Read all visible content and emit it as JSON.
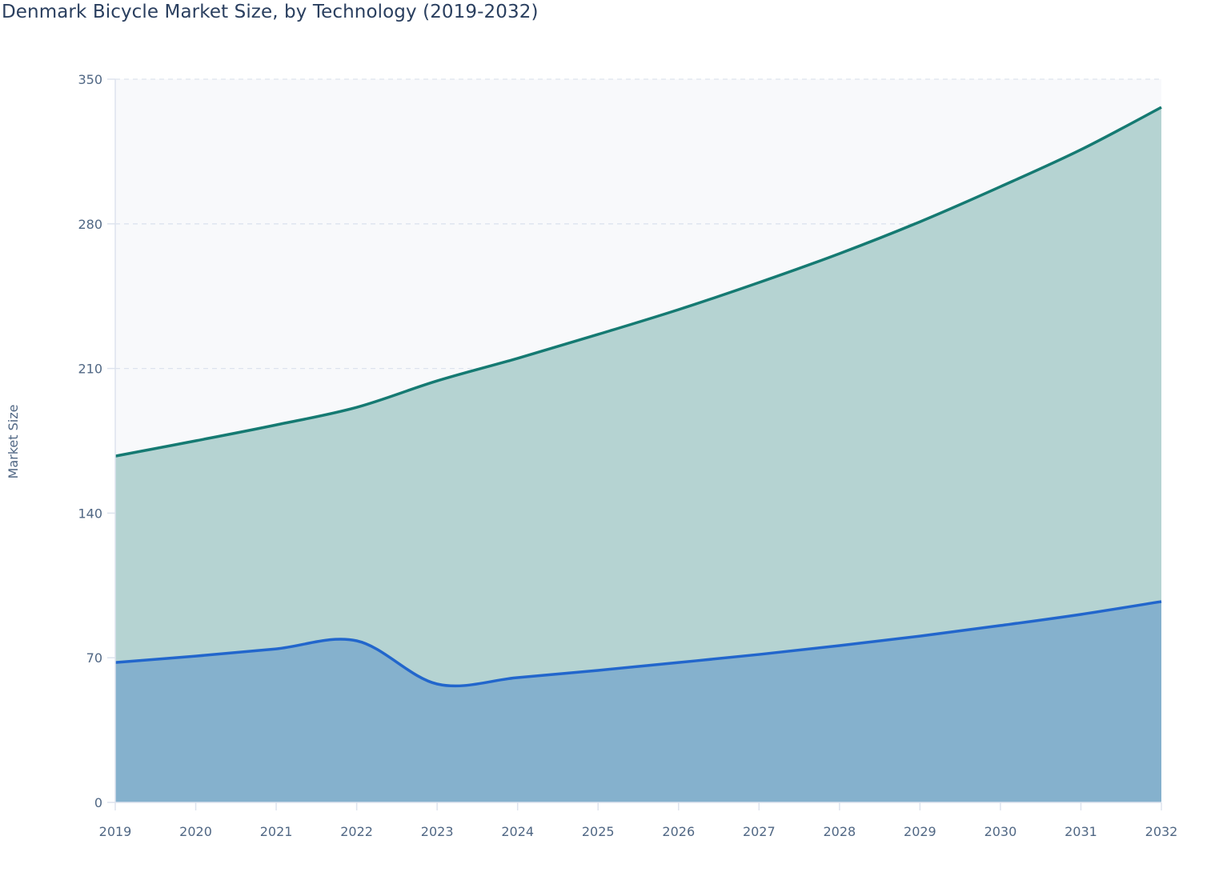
{
  "chart_data": {
    "type": "area",
    "stacked": true,
    "title": "Denmark Bicycle Market Size, by Technology (2019-2032)",
    "xlabel": "",
    "ylabel": "Market Size",
    "x": [
      2019,
      2020,
      2021,
      2022,
      2023,
      2024,
      2025,
      2026,
      2027,
      2028,
      2029,
      2030,
      2031,
      2032
    ],
    "ylim": [
      0,
      350
    ],
    "yticks": [
      0,
      70,
      140,
      210,
      280,
      350
    ],
    "grid": true,
    "legend": "none",
    "series": [
      {
        "values": [
          67.7,
          70.8,
          74.3,
          78.2,
          57.3,
          60.4,
          63.9,
          67.7,
          71.6,
          75.9,
          80.5,
          85.6,
          91.0,
          97.2
        ],
        "line_color": "#2266cc",
        "fill_color": "#85b1cd"
      },
      {
        "values": [
          99.9,
          104.2,
          108.4,
          113.0,
          146.7,
          154.5,
          162.6,
          170.8,
          180.0,
          189.7,
          200.5,
          212.4,
          224.9,
          239.2
        ],
        "line_color": "#157a72",
        "fill_color": "#b5d3d2"
      }
    ],
    "plot_background": "#f8f9fb"
  }
}
